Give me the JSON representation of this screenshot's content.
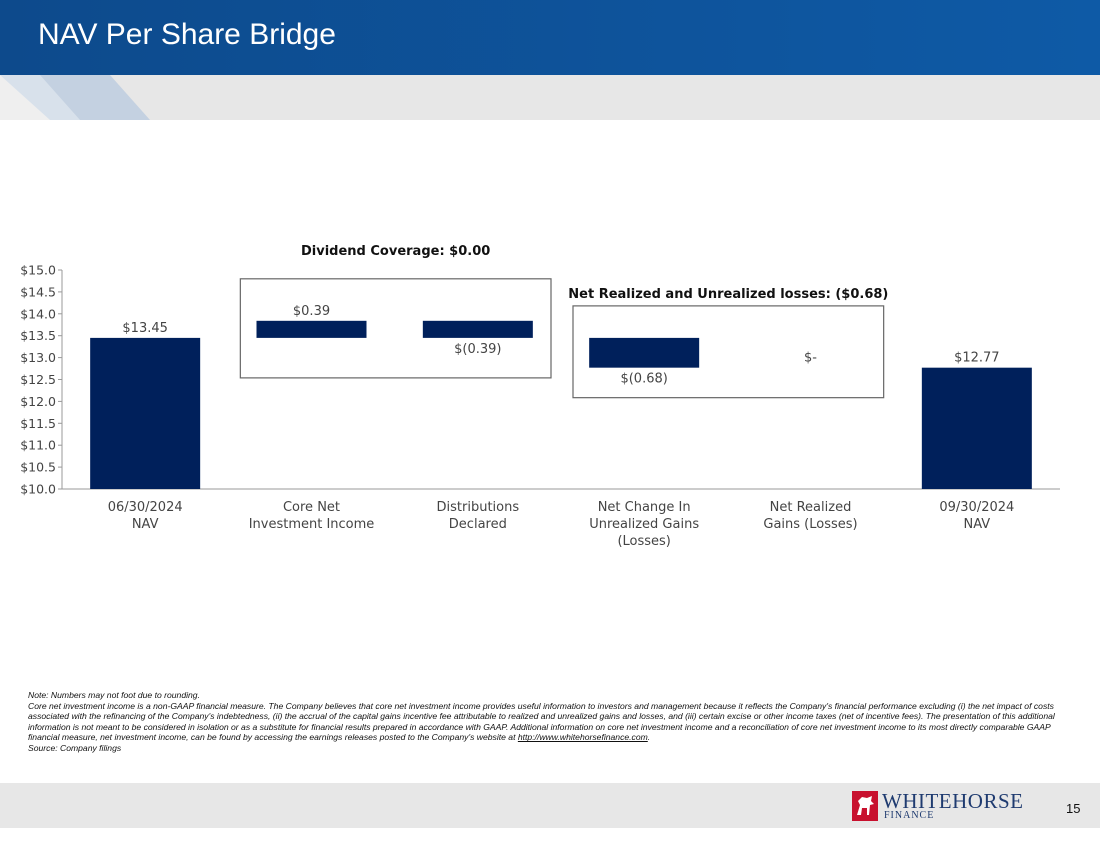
{
  "header": {
    "title": "NAV Per Share Bridge"
  },
  "colors": {
    "bar": "#00205b",
    "header": "#0e5aa6",
    "accent_red": "#c8102e"
  },
  "chart_data": {
    "type": "bar",
    "subtype": "waterfall",
    "categories": [
      [
        "06/30/2024",
        "NAV"
      ],
      [
        "Core Net",
        "Investment Income"
      ],
      [
        "Distributions",
        "Declared"
      ],
      [
        "Net Change In",
        "Unrealized Gains",
        "(Losses)"
      ],
      [
        "Net Realized",
        "Gains (Losses)"
      ],
      [
        "09/30/2024",
        "NAV"
      ]
    ],
    "bars": [
      {
        "start": 10.0,
        "end": 13.45,
        "label": "$13.45",
        "label_pos": "above"
      },
      {
        "start": 13.45,
        "end": 13.84,
        "label": "$0.39",
        "label_pos": "above"
      },
      {
        "start": 13.84,
        "end": 13.45,
        "label": "$(0.39)",
        "label_pos": "below"
      },
      {
        "start": 13.45,
        "end": 12.77,
        "label": "$(0.68)",
        "label_pos": "below"
      },
      {
        "start": 12.77,
        "end": 12.77,
        "label": "$-",
        "label_pos": "above"
      },
      {
        "start": 10.0,
        "end": 12.77,
        "label": "$12.77",
        "label_pos": "above"
      }
    ],
    "ylim": [
      10.0,
      15.0
    ],
    "yticks": [
      "$10.0",
      "$10.5",
      "$11.0",
      "$11.5",
      "$12.0",
      "$12.5",
      "$13.0",
      "$13.5",
      "$14.0",
      "$14.5",
      "$15.0"
    ],
    "grid": false,
    "annotations": [
      {
        "text": "Dividend Coverage: $0.00",
        "groups": [
          1,
          2
        ]
      },
      {
        "text": "Net Realized and Unrealized losses: ($0.68)",
        "groups": [
          3,
          4
        ]
      }
    ]
  },
  "notes": {
    "line1": "Note: Numbers may not foot due to rounding.",
    "line2": "Core net investment income is a non-GAAP financial measure. The Company believes that core net investment income provides useful information to investors and management because it reflects the Company's financial performance excluding (i) the net impact of costs associated with the refinancing of the Company's indebtedness, (ii) the accrual of the capital gains incentive fee attributable to realized and unrealized gains and losses, and (iii) certain excise or other income taxes (net of incentive fees). The presentation of this additional information is not meant to be considered in isolation or as a substitute for financial results prepared in accordance with GAAP. Additional information on core net investment income and a reconciliation of core net investment income to its most directly comparable GAAP financial measure, net investment income, can be found by accessing the earnings releases posted to the Company's website at",
    "link": "http://www.whitehorsefinance.com",
    "line2_end": ".",
    "line3": "Source: Company filings"
  },
  "footer": {
    "logo_word": "WHITEHORSE",
    "logo_sub": "FINANCE",
    "page_number": "15"
  }
}
